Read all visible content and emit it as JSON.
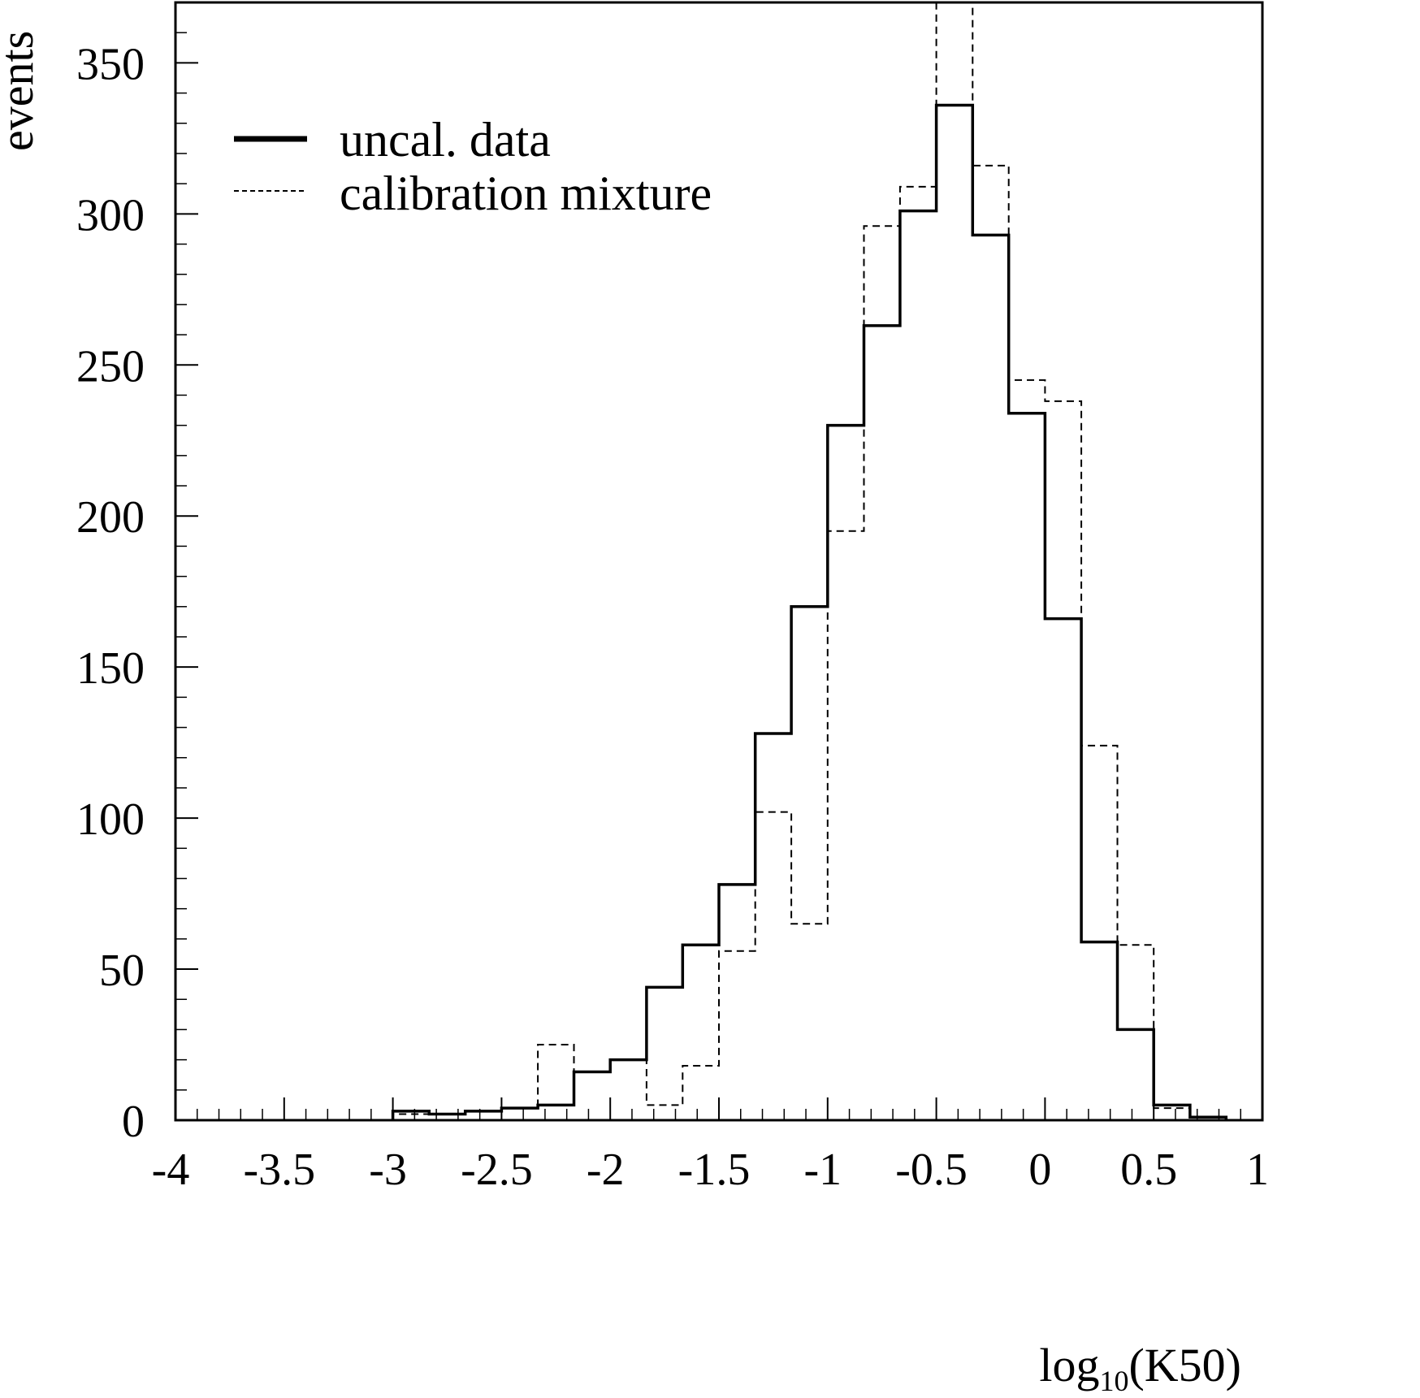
{
  "chart_data": {
    "type": "step-histogram",
    "title": "",
    "xlabel": "log",
    "xlabel_sub": "10",
    "xlabel_tail": "(K50)",
    "ylabel": "events",
    "xlim": [
      -4,
      1
    ],
    "ylim": [
      0,
      370
    ],
    "xticks": [
      "-4",
      "-3.5",
      "-3",
      "-2.5",
      "-2",
      "-1.5",
      "-1",
      "-0.5",
      "0",
      "0.5",
      "1"
    ],
    "yticks": [
      "0",
      "50",
      "100",
      "150",
      "200",
      "250",
      "300",
      "350"
    ],
    "legend": {
      "placement": "top-left"
    },
    "bin_edges": [
      -3.0,
      -2.833,
      -2.667,
      -2.5,
      -2.333,
      -2.167,
      -2.0,
      -1.833,
      -1.667,
      -1.5,
      -1.333,
      -1.167,
      -1.0,
      -0.833,
      -0.667,
      -0.5,
      -0.333,
      -0.167,
      0.0,
      0.167,
      0.333,
      0.5,
      0.667,
      0.833
    ],
    "series": [
      {
        "name": "uncal. data",
        "style": "solid",
        "values": [
          3,
          2,
          3,
          4,
          5,
          16,
          20,
          44,
          58,
          78,
          128,
          170,
          230,
          263,
          301,
          336,
          293,
          234,
          166,
          59,
          30,
          5,
          1
        ]
      },
      {
        "name": "calibration mixture",
        "style": "dashed",
        "values": [
          2,
          2,
          3,
          4,
          25,
          16,
          20,
          5,
          18,
          56,
          102,
          65,
          195,
          296,
          309,
          370,
          316,
          245,
          238,
          124,
          58,
          4,
          1
        ]
      }
    ]
  }
}
